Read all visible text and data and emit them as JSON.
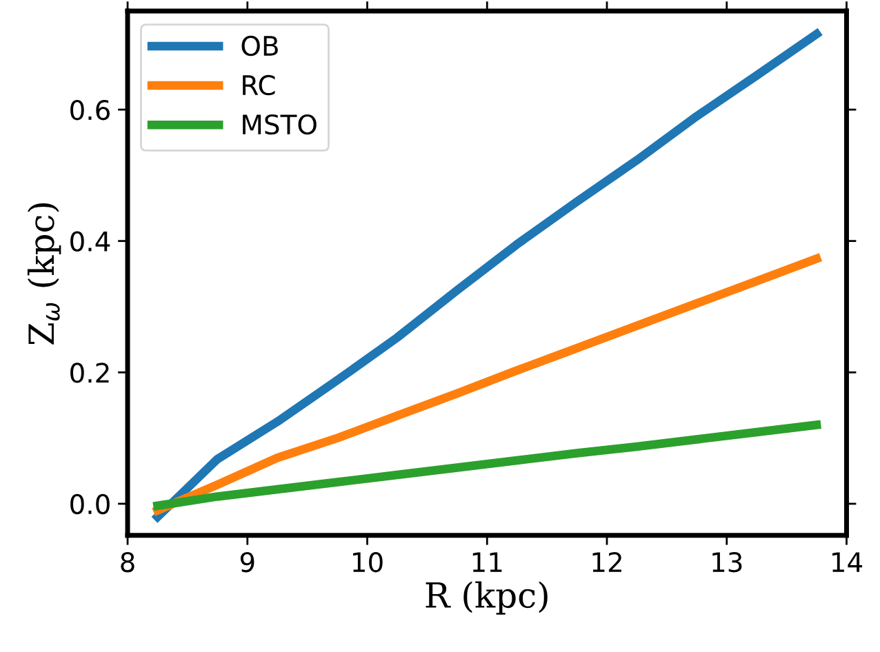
{
  "chart_data": {
    "type": "line",
    "xlabel": "R (kpc)",
    "ylabel": "Z$_{ω}$ (kpc)",
    "x": [
      8.25,
      8.75,
      9.25,
      9.75,
      10.25,
      10.75,
      11.25,
      11.75,
      12.25,
      12.75,
      13.25,
      13.75
    ],
    "series": [
      {
        "name": "OB",
        "color": "#1f77b4",
        "values": [
          -0.02,
          0.068,
          0.125,
          0.188,
          0.253,
          0.325,
          0.395,
          0.46,
          0.523,
          0.59,
          0.652,
          0.715
        ]
      },
      {
        "name": "RC",
        "color": "#ff7f0e",
        "values": [
          -0.01,
          0.029,
          0.07,
          0.1,
          0.134,
          0.168,
          0.203,
          0.237,
          0.271,
          0.305,
          0.339,
          0.373
        ]
      },
      {
        "name": "MSTO",
        "color": "#2ca02c",
        "values": [
          -0.003,
          0.011,
          0.022,
          0.033,
          0.044,
          0.055,
          0.066,
          0.077,
          0.087,
          0.098,
          0.109,
          0.12
        ]
      }
    ],
    "xlim": [
      8,
      14
    ],
    "xticks": [
      8,
      9,
      10,
      11,
      12,
      13,
      14
    ],
    "ylim": [
      -0.048,
      0.75
    ],
    "yticks": [
      {
        "value": 0,
        "label": "0.0"
      },
      {
        "value": 0.2,
        "label": "0.2"
      },
      {
        "value": 0.4,
        "label": "0.4"
      },
      {
        "value": 0.6,
        "label": "0.6"
      }
    ],
    "legend": "top left",
    "grid": false,
    "marker": "none",
    "line_style": "solid"
  }
}
